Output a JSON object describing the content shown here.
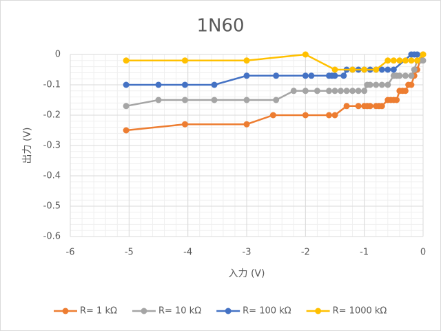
{
  "chart_data": {
    "type": "scatter-line",
    "title": "1N60",
    "x_label": "入力 (V)",
    "y_label": "出力 (V)",
    "xlim": [
      -6,
      0
    ],
    "xticks": [
      -6,
      -5,
      -4,
      -3,
      -2,
      -1,
      0
    ],
    "ylim": [
      -0.6,
      0
    ],
    "yticks": [
      0,
      -0.1,
      -0.2,
      -0.3,
      -0.4,
      -0.5,
      -0.6
    ],
    "grid": true,
    "minor_grid": true,
    "legend": "bottom",
    "series": [
      {
        "name": "R= 1 kΩ",
        "color": "#ed7d31",
        "x": [
          -5.05,
          -4.05,
          -3.0,
          -2.55,
          -2.0,
          -1.6,
          -1.5,
          -1.3,
          -1.1,
          -1.0,
          -0.95,
          -0.9,
          -0.8,
          -0.75,
          -0.7,
          -0.6,
          -0.55,
          -0.5,
          -0.45,
          -0.4,
          -0.35,
          -0.3,
          -0.25,
          -0.2,
          -0.15,
          -0.1,
          -0.05,
          0
        ],
        "values": [
          -0.25,
          -0.23,
          -0.23,
          -0.2,
          -0.2,
          -0.2,
          -0.2,
          -0.17,
          -0.17,
          -0.17,
          -0.17,
          -0.17,
          -0.17,
          -0.17,
          -0.17,
          -0.15,
          -0.15,
          -0.15,
          -0.15,
          -0.12,
          -0.12,
          -0.12,
          -0.1,
          -0.1,
          -0.07,
          -0.05,
          -0.02,
          0
        ]
      },
      {
        "name": "R= 10 kΩ",
        "color": "#a5a5a5",
        "x": [
          -5.05,
          -4.5,
          -4.05,
          -3.55,
          -3.0,
          -2.5,
          -2.2,
          -2.0,
          -1.8,
          -1.6,
          -1.5,
          -1.4,
          -1.3,
          -1.2,
          -1.1,
          -1.0,
          -0.95,
          -0.9,
          -0.8,
          -0.7,
          -0.6,
          -0.5,
          -0.45,
          -0.4,
          -0.3,
          -0.2,
          -0.15,
          -0.1,
          -0.05,
          0
        ],
        "values": [
          -0.17,
          -0.15,
          -0.15,
          -0.15,
          -0.15,
          -0.15,
          -0.12,
          -0.12,
          -0.12,
          -0.12,
          -0.12,
          -0.12,
          -0.12,
          -0.12,
          -0.12,
          -0.12,
          -0.1,
          -0.1,
          -0.1,
          -0.1,
          -0.1,
          -0.07,
          -0.07,
          -0.07,
          -0.07,
          -0.07,
          -0.05,
          -0.02,
          -0.02,
          -0.02
        ]
      },
      {
        "name": "R= 100 kΩ",
        "color": "#4472c4",
        "x": [
          -5.05,
          -4.5,
          -4.05,
          -3.55,
          -3.0,
          -2.5,
          -2.0,
          -1.9,
          -1.6,
          -1.55,
          -1.5,
          -1.35,
          -1.3,
          -1.2,
          -1.1,
          -1.0,
          -0.9,
          -0.8,
          -0.7,
          -0.6,
          -0.5,
          -0.2,
          -0.15,
          -0.1
        ],
        "values": [
          -0.1,
          -0.1,
          -0.1,
          -0.1,
          -0.07,
          -0.07,
          -0.07,
          -0.07,
          -0.07,
          -0.07,
          -0.07,
          -0.07,
          -0.05,
          -0.05,
          -0.05,
          -0.05,
          -0.05,
          -0.05,
          -0.05,
          -0.05,
          -0.05,
          0,
          0,
          0
        ]
      },
      {
        "name": "R= 1000 kΩ",
        "color": "#ffc000",
        "x": [
          -5.05,
          -4.05,
          -3.0,
          -2.0,
          -1.5,
          -1.2,
          -1.0,
          -0.8,
          -0.6,
          -0.5,
          -0.4,
          -0.3,
          -0.2,
          -0.1,
          0
        ],
        "values": [
          -0.02,
          -0.02,
          -0.02,
          0,
          -0.05,
          -0.05,
          -0.05,
          -0.05,
          -0.02,
          -0.02,
          -0.02,
          -0.02,
          -0.02,
          -0.02,
          0
        ]
      }
    ]
  }
}
